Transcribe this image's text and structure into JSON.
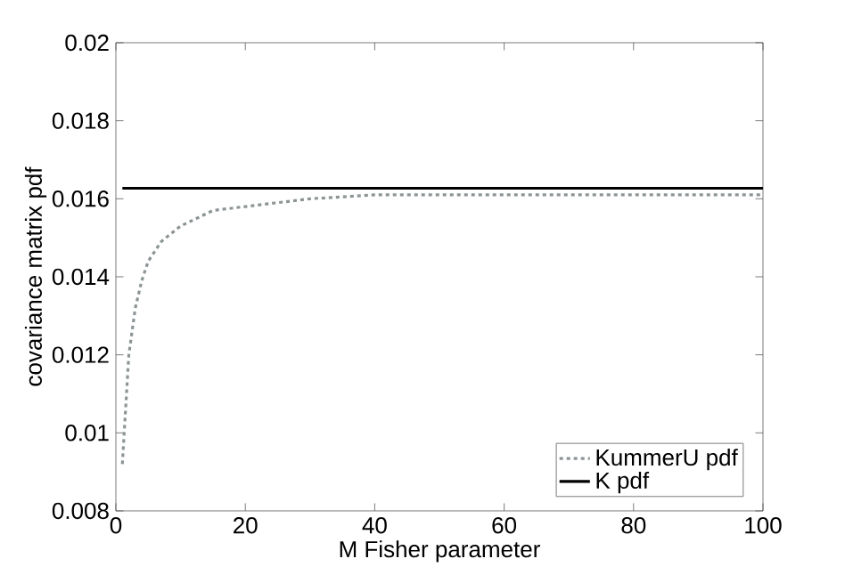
{
  "chart_data": {
    "type": "line",
    "xlabel": "M Fisher parameter",
    "ylabel": "covariance matrix pdf",
    "xlim": [
      0,
      100
    ],
    "ylim": [
      0.008,
      0.02
    ],
    "xticks": [
      0,
      20,
      40,
      60,
      80,
      100
    ],
    "yticks": [
      0.008,
      0.01,
      0.012,
      0.014,
      0.016,
      0.018,
      0.02
    ],
    "legend": "bottom right",
    "grid": false,
    "marker": "none",
    "series": [
      {
        "name": "KummerU pdf",
        "color": "#8c9496",
        "line_style": "dotted",
        "x": [
          1,
          2,
          3,
          4,
          5,
          7,
          10,
          15,
          20,
          30,
          40,
          60,
          80,
          100
        ],
        "values": [
          0.0092,
          0.012,
          0.0132,
          0.0139,
          0.0144,
          0.0149,
          0.0153,
          0.0157,
          0.0158,
          0.016,
          0.0161,
          0.0161,
          0.0161,
          0.0161
        ]
      },
      {
        "name": "K pdf",
        "color": "#000000",
        "line_style": "solid",
        "x": [
          1,
          100
        ],
        "values": [
          0.01627,
          0.01627
        ]
      }
    ]
  }
}
